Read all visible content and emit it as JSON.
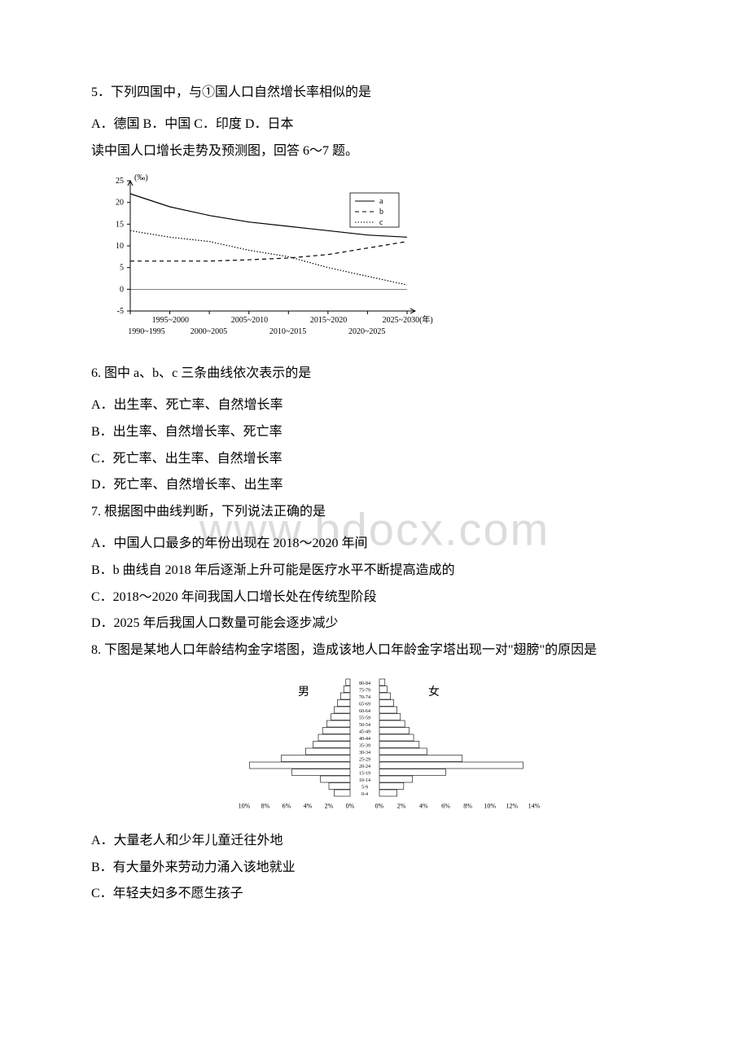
{
  "watermark": "www.bdocx.com",
  "q5": {
    "text": "5．下列四国中，与①国人口自然增长率相似的是",
    "options": "A．德国 B．中国 C．印度 D．日本"
  },
  "intro67": "读中国人口增长走势及预测图，回答 6～7 题。",
  "chart1": {
    "type": "line",
    "ylabel": "(‰)",
    "yticks": [
      -5,
      0,
      5,
      10,
      15,
      20,
      25
    ],
    "ylim": [
      -5,
      25
    ],
    "xlabels_top": [
      "1995~2000",
      "2005~2010",
      "2015~2020",
      "2025~2030(年)"
    ],
    "xlabels_bottom": [
      "1990~1995",
      "2000~2005",
      "2010~2015",
      "2020~2025"
    ],
    "legend": [
      "a",
      "b",
      "c"
    ],
    "line_styles": [
      "solid",
      "dashed",
      "dotted"
    ],
    "series": {
      "a": [
        22,
        19,
        17,
        15.5,
        14.5,
        13.5,
        12.5,
        12
      ],
      "b": [
        6.5,
        6.5,
        6.5,
        6.8,
        7.2,
        8,
        9.5,
        11
      ],
      "c": [
        13.5,
        12,
        11,
        9,
        7.5,
        5,
        3,
        1
      ]
    },
    "axis_color": "#000000",
    "line_color": "#000000",
    "background": "#ffffff",
    "font_size": 10
  },
  "q6": {
    "text": "6. 图中 a、b、c 三条曲线依次表示的是",
    "optA": "A．出生率、死亡率、自然增长率",
    "optB": "B．出生率、自然增长率、死亡率",
    "optC": "C．死亡率、出生率、自然增长率",
    "optD": "D．死亡率、自然增长率、出生率"
  },
  "q7": {
    "text": "7. 根据图中曲线判断，下列说法正确的是",
    "optA": "A．中国人口最多的年份出现在 2018～2020 年间",
    "optB": "B．b 曲线自 2018 年后逐渐上升可能是医疗水平不断提高造成的",
    "optC": "C．2018～2020 年间我国人口增长处在传统型阶段",
    "optD": "D．2025 年后我国人口数量可能会逐步减少"
  },
  "q8": {
    "text": "8. 下图是某地人口年龄结构金字塔图，造成该地人口年龄金字塔出现一对\"翅膀\"的原因是",
    "optA": "A．大量老人和少年儿童迁往外地",
    "optB": "B．有大量外来劳动力涌入该地就业",
    "optC": "C．年轻夫妇多不愿生孩子"
  },
  "chart2": {
    "type": "pyramid",
    "left_label": "男",
    "right_label": "女",
    "age_groups": [
      "80-84",
      "75-79",
      "70-74",
      "65-69",
      "60-64",
      "55-59",
      "50-54",
      "45-49",
      "40-44",
      "35-39",
      "30-34",
      "25-29",
      "20-24",
      "15-19",
      "10-14",
      "5-9",
      "0-4"
    ],
    "male_values": [
      0.4,
      0.6,
      0.9,
      1.2,
      1.5,
      1.8,
      2.2,
      2.6,
      3.0,
      3.5,
      4.2,
      6.5,
      9.5,
      5.5,
      2.8,
      2.0,
      1.5
    ],
    "female_values": [
      0.5,
      0.7,
      1.0,
      1.3,
      1.6,
      1.9,
      2.3,
      2.7,
      3.1,
      3.6,
      4.3,
      7.5,
      13.0,
      6.0,
      3.0,
      2.2,
      1.6
    ],
    "xticks_left": [
      "10%",
      "8%",
      "6%",
      "4%",
      "2%",
      "0%"
    ],
    "xticks_right": [
      "0%",
      "2%",
      "4%",
      "6%",
      "8%",
      "10%",
      "12%",
      "14%"
    ],
    "bar_fill": "#ffffff",
    "bar_stroke": "#000000",
    "font_size": 8
  }
}
